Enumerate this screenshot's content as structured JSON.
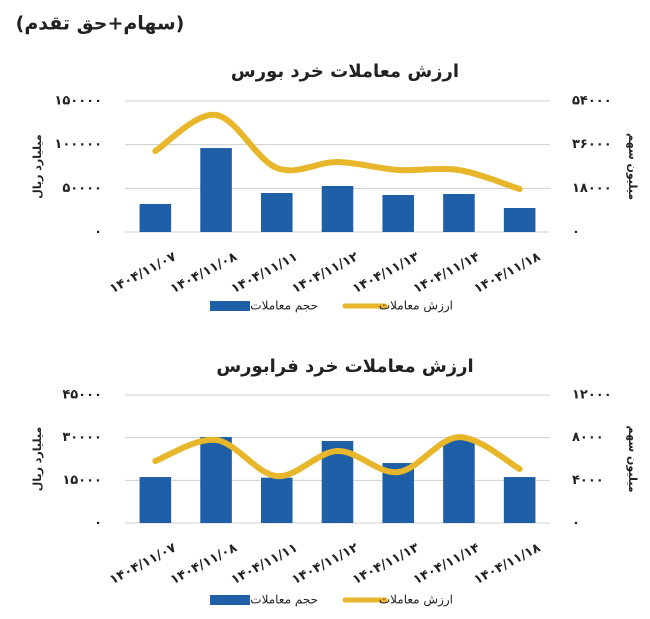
{
  "header": "(سهام+حق تقدم)",
  "chart_data": [
    {
      "type": "combo",
      "title": "ارزش معاملات خرد بورس",
      "categories": [
        "۱۴۰۴/۱۱/۰۷",
        "۱۴۰۴/۱۱/۰۸",
        "۱۴۰۴/۱۱/۱۱",
        "۱۴۰۴/۱۱/۱۲",
        "۱۴۰۴/۱۱/۱۳",
        "۱۴۰۴/۱۱/۱۴",
        "۱۴۰۴/۱۱/۱۸"
      ],
      "ylabel": "میلیارد ریال",
      "y2label": "میلیون سهم",
      "ylim": [
        0,
        150000
      ],
      "yticks": [
        {
          "value": 0,
          "label": "۰"
        },
        {
          "value": 50000,
          "label": "۵۰۰۰۰"
        },
        {
          "value": 100000,
          "label": "۱۰۰۰۰۰"
        },
        {
          "value": 150000,
          "label": "۱۵۰۰۰۰"
        }
      ],
      "y2lim": [
        0,
        54000
      ],
      "y2ticks": [
        {
          "value": 0,
          "label": "۰"
        },
        {
          "value": 18000,
          "label": "۱۸۰۰۰"
        },
        {
          "value": 36000,
          "label": "۳۶۰۰۰"
        },
        {
          "value": 54000,
          "label": "۵۴۰۰۰"
        }
      ],
      "grid": true,
      "series": [
        {
          "name": "حجم معاملات",
          "type": "bar",
          "axis": "y2",
          "color": "#1f5fa8",
          "values": [
            11540,
            34600,
            16080,
            18960,
            15250,
            15660,
            9890
          ]
        },
        {
          "name": "ارزش معاملات",
          "type": "line",
          "color": "#e8b62a",
          "values": [
            92700,
            134000,
            73300,
            80150,
            71000,
            71000,
            49200
          ]
        }
      ]
    },
    {
      "type": "combo",
      "title": "ارزش معاملات خرد فرابورس",
      "categories": [
        "۱۴۰۴/۱۱/۰۷",
        "۱۴۰۴/۱۱/۰۸",
        "۱۴۰۴/۱۱/۱۱",
        "۱۴۰۴/۱۱/۱۲",
        "۱۴۰۴/۱۱/۱۳",
        "۱۴۰۴/۱۱/۱۴",
        "۱۴۰۴/۱۱/۱۸"
      ],
      "ylabel": "میلیارد ریال",
      "y2label": "میلیون سهم",
      "ylim": [
        0,
        45000
      ],
      "yticks": [
        {
          "value": 0,
          "label": "۰"
        },
        {
          "value": 15000,
          "label": "۱۵۰۰۰"
        },
        {
          "value": 30000,
          "label": "۳۰۰۰۰"
        },
        {
          "value": 45000,
          "label": "۴۵۰۰۰"
        }
      ],
      "y2lim": [
        0,
        12000
      ],
      "y2ticks": [
        {
          "value": 0,
          "label": "۰"
        },
        {
          "value": 4000,
          "label": "۴۰۰۰"
        },
        {
          "value": 8000,
          "label": "۸۰۰۰"
        },
        {
          "value": 12000,
          "label": "۱۲۰۰۰"
        }
      ],
      "grid": true,
      "series": [
        {
          "name": "حجم معاملات",
          "type": "bar",
          "axis": "y2",
          "color": "#1f5fa8",
          "values": [
            4310,
            8060,
            4250,
            7690,
            5620,
            7780,
            4310
          ]
        },
        {
          "name": "ارزش معاملات",
          "type": "line",
          "color": "#e8b62a",
          "values": [
            21800,
            29200,
            16500,
            25300,
            17900,
            30200,
            19000
          ]
        }
      ]
    }
  ]
}
